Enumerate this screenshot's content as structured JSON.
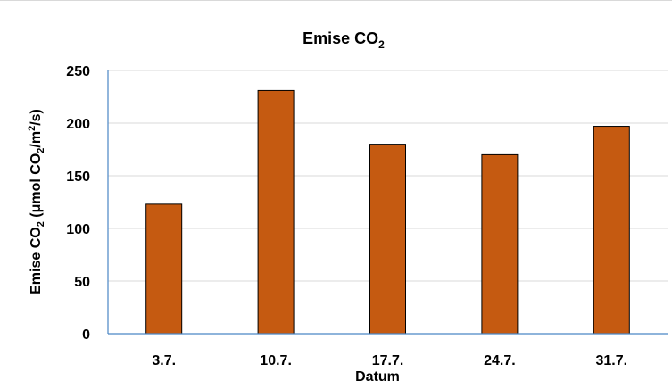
{
  "chart_data": {
    "type": "bar",
    "title": {
      "main": "Emise CO",
      "sub": "2"
    },
    "ylabel": {
      "p1": "Emise CO",
      "sub1": "2",
      "p2": " (μmol CO",
      "sub2": "2",
      "p3": "/m",
      "sup": "2",
      "p4": "/s)"
    },
    "xlabel": "Datum",
    "categories": [
      "3.7.",
      "10.7.",
      "17.7.",
      "24.7.",
      "31.7."
    ],
    "values": [
      123,
      231,
      180,
      170,
      197
    ],
    "ylim": [
      0,
      250
    ],
    "yticks": [
      0,
      50,
      100,
      150,
      200,
      250
    ],
    "grid": true,
    "legend": "none",
    "bar_color": "#c55a11",
    "bar_edge_color": "#000000",
    "grid_color": "#d9d9d9",
    "axis_color": "#4a86c5"
  }
}
